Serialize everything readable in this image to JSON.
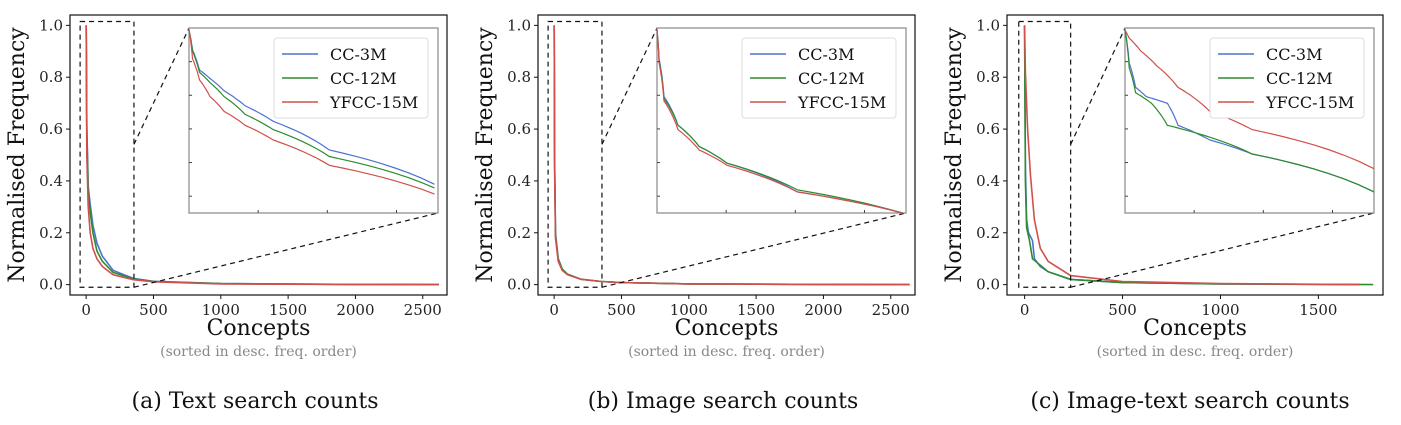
{
  "colors": {
    "CC-3M": "#4c72d0",
    "CC-12M": "#2e8b2e",
    "YFCC-15M": "#d0504c"
  },
  "chart_data": [
    {
      "type": "line",
      "caption": "(a) Text search counts",
      "xlabel": "Concepts",
      "xlabel_note": "(sorted in desc. freq. order)",
      "ylabel": "Normalised Frequency",
      "xlim": [
        -120,
        2680
      ],
      "ylim": [
        -0.04,
        1.04
      ],
      "xticks": [
        0,
        500,
        1000,
        1500,
        2000,
        2500
      ],
      "yticks": [
        0.0,
        0.2,
        0.4,
        0.6,
        0.8,
        1.0
      ],
      "zoom_box": {
        "x": [
          -45,
          355
        ],
        "y": [
          -0.01,
          1.015
        ]
      },
      "inset_yscale": "log",
      "legend": "top-right of inset",
      "series": [
        {
          "name": "CC-3M",
          "points": [
            [
              0,
              1
            ],
            [
              5,
              0.62
            ],
            [
              15,
              0.38
            ],
            [
              30,
              0.31
            ],
            [
              50,
              0.23
            ],
            [
              80,
              0.16
            ],
            [
              120,
              0.11
            ],
            [
              200,
              0.055
            ],
            [
              350,
              0.024
            ],
            [
              500,
              0.013
            ],
            [
              1000,
              0.004
            ],
            [
              2000,
              0.001
            ],
            [
              2620,
              0
            ]
          ]
        },
        {
          "name": "CC-12M",
          "points": [
            [
              0,
              1
            ],
            [
              5,
              0.6
            ],
            [
              15,
              0.36
            ],
            [
              30,
              0.28
            ],
            [
              50,
              0.2
            ],
            [
              80,
              0.13
            ],
            [
              120,
              0.09
            ],
            [
              200,
              0.047
            ],
            [
              350,
              0.022
            ],
            [
              500,
              0.012
            ],
            [
              1000,
              0.004
            ],
            [
              2000,
              0.001
            ],
            [
              2620,
              0
            ]
          ]
        },
        {
          "name": "YFCC-15M",
          "points": [
            [
              0,
              1
            ],
            [
              5,
              0.5
            ],
            [
              15,
              0.3
            ],
            [
              30,
              0.2
            ],
            [
              50,
              0.14
            ],
            [
              80,
              0.1
            ],
            [
              120,
              0.07
            ],
            [
              200,
              0.038
            ],
            [
              350,
              0.019
            ],
            [
              500,
              0.011
            ],
            [
              1000,
              0.003
            ],
            [
              2000,
              0.001
            ],
            [
              2620,
              0
            ]
          ]
        }
      ]
    },
    {
      "type": "line",
      "caption": "(b) Image search counts",
      "xlabel": "Concepts",
      "xlabel_note": "(sorted in desc. freq. order)",
      "ylabel": "Normalised Frequency",
      "xlim": [
        -120,
        2680
      ],
      "ylim": [
        -0.04,
        1.04
      ],
      "xticks": [
        0,
        500,
        1000,
        1500,
        2000,
        2500
      ],
      "yticks": [
        0.0,
        0.2,
        0.4,
        0.6,
        0.8,
        1.0
      ],
      "zoom_box": {
        "x": [
          -45,
          355
        ],
        "y": [
          -0.01,
          1.015
        ]
      },
      "inset_yscale": "log",
      "legend": "top-right of inset",
      "series": [
        {
          "name": "CC-3M",
          "points": [
            [
              0,
              1
            ],
            [
              3,
              0.5
            ],
            [
              10,
              0.2
            ],
            [
              30,
              0.1
            ],
            [
              60,
              0.06
            ],
            [
              100,
              0.04
            ],
            [
              200,
              0.02
            ],
            [
              350,
              0.012
            ],
            [
              500,
              0.008
            ],
            [
              1000,
              0.003
            ],
            [
              2000,
              0.001
            ],
            [
              2640,
              0
            ]
          ]
        },
        {
          "name": "CC-12M",
          "points": [
            [
              0,
              1
            ],
            [
              3,
              0.48
            ],
            [
              10,
              0.19
            ],
            [
              30,
              0.1
            ],
            [
              60,
              0.06
            ],
            [
              100,
              0.04
            ],
            [
              200,
              0.021
            ],
            [
              350,
              0.012
            ],
            [
              500,
              0.008
            ],
            [
              1000,
              0.003
            ],
            [
              2000,
              0.001
            ],
            [
              2640,
              0
            ]
          ]
        },
        {
          "name": "YFCC-15M",
          "points": [
            [
              0,
              1
            ],
            [
              3,
              0.45
            ],
            [
              10,
              0.18
            ],
            [
              30,
              0.09
            ],
            [
              60,
              0.055
            ],
            [
              100,
              0.038
            ],
            [
              200,
              0.02
            ],
            [
              350,
              0.012
            ],
            [
              500,
              0.008
            ],
            [
              1000,
              0.003
            ],
            [
              2000,
              0.001
            ],
            [
              2640,
              0
            ]
          ]
        }
      ]
    },
    {
      "type": "line",
      "caption": "(c) Image-text search counts",
      "xlabel": "Concepts",
      "xlabel_note": "(sorted in desc. freq. order)",
      "ylabel": "Normalised Frequency",
      "xlim": [
        -90,
        1830
      ],
      "ylim": [
        -0.04,
        1.04
      ],
      "xticks": [
        0,
        500,
        1000,
        1500
      ],
      "yticks": [
        0.0,
        0.2,
        0.4,
        0.6,
        0.8,
        1.0
      ],
      "zoom_box": {
        "x": [
          -30,
          235
        ],
        "y": [
          -0.01,
          1.015
        ]
      },
      "inset_yscale": "log",
      "legend": "top-right of inset",
      "series": [
        {
          "name": "CC-3M",
          "points": [
            [
              0,
              1
            ],
            [
              4,
              0.45
            ],
            [
              10,
              0.25
            ],
            [
              20,
              0.2
            ],
            [
              40,
              0.17
            ],
            [
              50,
              0.1
            ],
            [
              80,
              0.07
            ],
            [
              120,
              0.05
            ],
            [
              235,
              0.02
            ],
            [
              500,
              0.008
            ],
            [
              1000,
              0.003
            ],
            [
              1710,
              0
            ]
          ]
        },
        {
          "name": "CC-12M",
          "points": [
            [
              0,
              1
            ],
            [
              4,
              0.4
            ],
            [
              10,
              0.22
            ],
            [
              25,
              0.17
            ],
            [
              40,
              0.1
            ],
            [
              80,
              0.075
            ],
            [
              120,
              0.05
            ],
            [
              235,
              0.02
            ],
            [
              500,
              0.008
            ],
            [
              1000,
              0.003
            ],
            [
              1780,
              0
            ]
          ]
        },
        {
          "name": "YFCC-15M",
          "points": [
            [
              0,
              1
            ],
            [
              4,
              0.82
            ],
            [
              15,
              0.6
            ],
            [
              30,
              0.42
            ],
            [
              50,
              0.25
            ],
            [
              80,
              0.14
            ],
            [
              120,
              0.09
            ],
            [
              235,
              0.035
            ],
            [
              500,
              0.012
            ],
            [
              1000,
              0.004
            ],
            [
              1710,
              0
            ]
          ]
        }
      ]
    }
  ]
}
